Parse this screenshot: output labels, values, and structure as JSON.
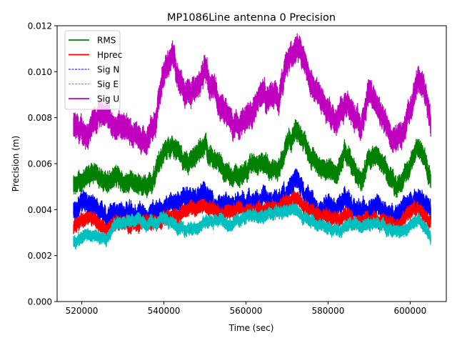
{
  "chart_data": {
    "type": "line",
    "title": "MP1086Line antenna 0 Precision",
    "xlabel": "Time (sec)",
    "ylabel": "Precision (m)",
    "xlim": [
      514000,
      608800
    ],
    "ylim": [
      0,
      0.012
    ],
    "xticks": [
      520000,
      540000,
      560000,
      580000,
      600000
    ],
    "xtick_labels": [
      "520000",
      "540000",
      "560000",
      "580000",
      "600000"
    ],
    "yticks": [
      0,
      0.002,
      0.004,
      0.006,
      0.008,
      0.01,
      0.012
    ],
    "ytick_labels": [
      "0.000",
      "0.002",
      "0.004",
      "0.006",
      "0.008",
      "0.010",
      "0.012"
    ],
    "grid": false,
    "legend_position": "top-left",
    "x": [
      518000,
      520000,
      522000,
      524000,
      526000,
      528000,
      530000,
      532000,
      534000,
      536000,
      538000,
      540000,
      542000,
      544000,
      546000,
      548000,
      550000,
      552000,
      554000,
      556000,
      558000,
      560000,
      562000,
      564000,
      566000,
      568000,
      570000,
      572000,
      574000,
      576000,
      578000,
      580000,
      582000,
      584000,
      586000,
      588000,
      590000,
      592000,
      594000,
      596000,
      598000,
      600000,
      602000,
      604000,
      605000
    ],
    "series": [
      {
        "name": "RMS",
        "color": "#008000",
        "style": "solid",
        "spread": 0.00035,
        "values": [
          0.0051,
          0.0053,
          0.0055,
          0.0054,
          0.0053,
          0.0055,
          0.0052,
          0.0053,
          0.0051,
          0.005,
          0.0056,
          0.0066,
          0.007,
          0.0063,
          0.006,
          0.0064,
          0.0069,
          0.0062,
          0.0057,
          0.0055,
          0.0055,
          0.0056,
          0.0062,
          0.0061,
          0.0059,
          0.0058,
          0.0068,
          0.0075,
          0.0071,
          0.0063,
          0.0059,
          0.0057,
          0.0056,
          0.0064,
          0.0059,
          0.0053,
          0.0061,
          0.0063,
          0.0058,
          0.0051,
          0.0052,
          0.006,
          0.0068,
          0.006,
          0.0054
        ]
      },
      {
        "name": "Hprec",
        "color": "#ff0000",
        "style": "solid",
        "spread": 0.00025,
        "values": [
          0.0032,
          0.0036,
          0.0037,
          0.0033,
          0.0031,
          0.0034,
          0.0034,
          0.0033,
          0.0033,
          0.0035,
          0.0034,
          0.0037,
          0.0037,
          0.0039,
          0.004,
          0.0041,
          0.0042,
          0.004,
          0.0038,
          0.0039,
          0.004,
          0.0039,
          0.0039,
          0.004,
          0.004,
          0.0041,
          0.0043,
          0.0046,
          0.0042,
          0.0039,
          0.0038,
          0.0037,
          0.0036,
          0.0038,
          0.0035,
          0.0036,
          0.0035,
          0.0036,
          0.0034,
          0.0033,
          0.0036,
          0.0039,
          0.0041,
          0.0037,
          0.0034
        ]
      },
      {
        "name": "Sig N",
        "color": "#0000ff",
        "style": "dashed",
        "spread": 0.00035,
        "values": [
          0.0039,
          0.0044,
          0.0043,
          0.004,
          0.0037,
          0.0039,
          0.0038,
          0.0039,
          0.0038,
          0.0037,
          0.0039,
          0.0041,
          0.0043,
          0.0044,
          0.0047,
          0.0046,
          0.0047,
          0.0043,
          0.0041,
          0.0043,
          0.0044,
          0.0042,
          0.0044,
          0.0045,
          0.0043,
          0.0044,
          0.0046,
          0.0055,
          0.0047,
          0.0043,
          0.004,
          0.0041,
          0.004,
          0.0045,
          0.0041,
          0.0039,
          0.0039,
          0.0043,
          0.0038,
          0.0036,
          0.004,
          0.0043,
          0.0045,
          0.0042,
          0.004
        ]
      },
      {
        "name": "Sig E",
        "color": "#00bfbf",
        "style": "dashed",
        "spread": 0.00022,
        "values": [
          0.0026,
          0.0028,
          0.0029,
          0.0028,
          0.0026,
          0.0033,
          0.0034,
          0.0035,
          0.0035,
          0.0034,
          0.0035,
          0.0036,
          0.0034,
          0.0031,
          0.0032,
          0.0032,
          0.0035,
          0.0034,
          0.0036,
          0.0033,
          0.0035,
          0.0037,
          0.0038,
          0.0037,
          0.0038,
          0.0039,
          0.0039,
          0.0041,
          0.0036,
          0.0034,
          0.0033,
          0.0033,
          0.003,
          0.0033,
          0.0034,
          0.0033,
          0.0033,
          0.0034,
          0.0032,
          0.0031,
          0.003,
          0.0033,
          0.0036,
          0.0031,
          0.0027
        ]
      },
      {
        "name": "Sig U",
        "color": "#bf00bf",
        "style": "solid",
        "spread": 0.00045,
        "values": [
          0.0076,
          0.0073,
          0.0074,
          0.008,
          0.0083,
          0.0075,
          0.0076,
          0.0073,
          0.0073,
          0.007,
          0.0078,
          0.01,
          0.0108,
          0.0095,
          0.009,
          0.0094,
          0.01,
          0.0092,
          0.0085,
          0.0078,
          0.0076,
          0.008,
          0.0084,
          0.009,
          0.0089,
          0.0087,
          0.0103,
          0.011,
          0.0105,
          0.0095,
          0.0088,
          0.0083,
          0.008,
          0.0087,
          0.0082,
          0.0074,
          0.0092,
          0.0085,
          0.0078,
          0.007,
          0.0072,
          0.0083,
          0.0098,
          0.009,
          0.0078
        ]
      }
    ]
  }
}
